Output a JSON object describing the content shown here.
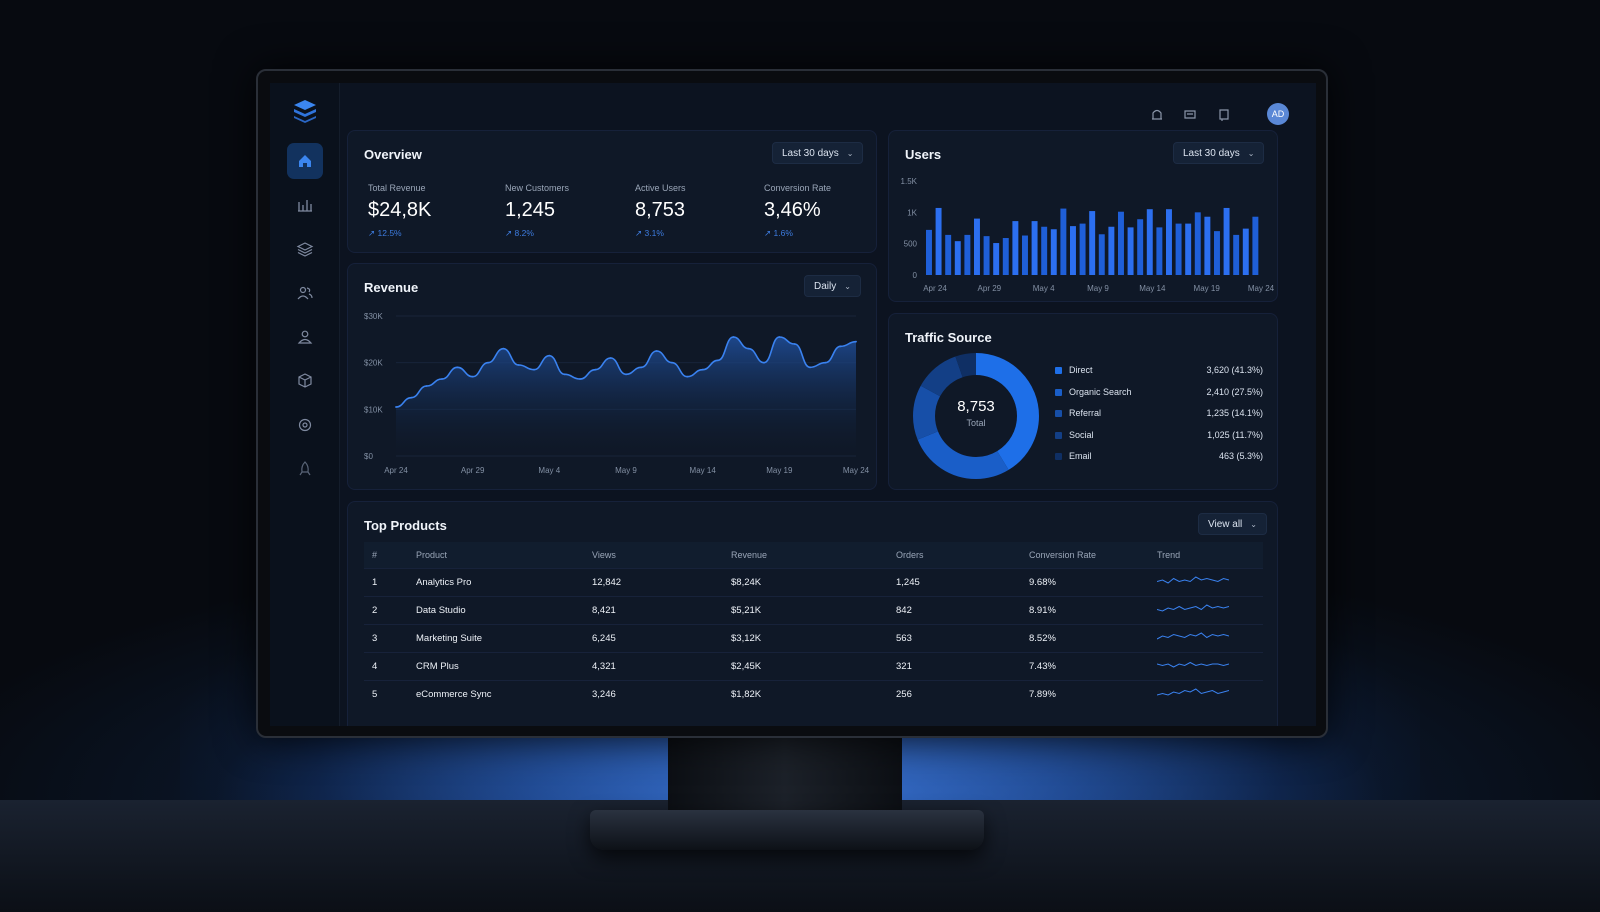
{
  "app": {
    "avatar_initials": "AD"
  },
  "sidebar": {
    "items": [
      {
        "name": "home",
        "active": true
      },
      {
        "name": "analytics"
      },
      {
        "name": "layers"
      },
      {
        "name": "users"
      },
      {
        "name": "contacts"
      },
      {
        "name": "cubes"
      },
      {
        "name": "settings"
      },
      {
        "name": "rocket"
      }
    ]
  },
  "overview": {
    "title": "Overview",
    "range": "Last 30 days",
    "kpis": [
      {
        "label": "Total Revenue",
        "value": "$24,8K",
        "change": "12.5%"
      },
      {
        "label": "New Customers",
        "value": "1,245",
        "change": "8.2%"
      },
      {
        "label": "Active Users",
        "value": "8,753",
        "change": "3.1%"
      },
      {
        "label": "Conversion Rate",
        "value": "3,46%",
        "change": "1.6%"
      }
    ]
  },
  "revenue": {
    "title": "Revenue",
    "range": "Daily"
  },
  "users": {
    "title": "Users",
    "range": "Last 30 days"
  },
  "traffic": {
    "title": "Traffic Source",
    "total": "8,753",
    "total_label": "Total",
    "sources": [
      {
        "name": "Direct",
        "value": "3,620 (41.3%)",
        "pct": 41.3,
        "color": "#1e6fe8"
      },
      {
        "name": "Organic Search",
        "value": "2,410 (27.5%)",
        "pct": 27.5,
        "color": "#1a5ec8"
      },
      {
        "name": "Referral",
        "value": "1,235 (14.1%)",
        "pct": 14.1,
        "color": "#174fa8"
      },
      {
        "name": "Social",
        "value": "1,025 (11.7%)",
        "pct": 11.7,
        "color": "#133f86"
      },
      {
        "name": "Email",
        "value": "463 (5.3%)",
        "pct": 5.3,
        "color": "#0f2f64"
      }
    ]
  },
  "products": {
    "title": "Top Products",
    "view_all": "View all",
    "columns": [
      "#",
      "Product",
      "Views",
      "Revenue",
      "Orders",
      "Conversion Rate",
      "Trend"
    ],
    "rows": [
      {
        "rank": "1",
        "product": "Analytics Pro",
        "views": "12,842",
        "revenue": "$8,24K",
        "orders": "1,245",
        "conversion": "9.68%"
      },
      {
        "rank": "2",
        "product": "Data Studio",
        "views": "8,421",
        "revenue": "$5,21K",
        "orders": "842",
        "conversion": "8.91%"
      },
      {
        "rank": "3",
        "product": "Marketing Suite",
        "views": "6,245",
        "revenue": "$3,12K",
        "orders": "563",
        "conversion": "8.52%"
      },
      {
        "rank": "4",
        "product": "CRM Plus",
        "views": "4,321",
        "revenue": "$2,45K",
        "orders": "321",
        "conversion": "7.43%"
      },
      {
        "rank": "5",
        "product": "eCommerce Sync",
        "views": "3,246",
        "revenue": "$1,82K",
        "orders": "256",
        "conversion": "7.89%"
      }
    ]
  },
  "chart_data": [
    {
      "type": "area",
      "title": "Revenue",
      "x_ticks": [
        "Apr 24",
        "Apr 29",
        "May 4",
        "May 9",
        "May 14",
        "May 19",
        "May 24"
      ],
      "y_ticks": [
        "$0",
        "$10K",
        "$20K",
        "$30K"
      ],
      "ylim": [
        0,
        30000
      ],
      "x": [
        0,
        1,
        2,
        3,
        4,
        5,
        6,
        7,
        8,
        9,
        10,
        11,
        12,
        13,
        14,
        15,
        16,
        17,
        18,
        19,
        20,
        21,
        22,
        23,
        24,
        25,
        26,
        27,
        28,
        29,
        30
      ],
      "values": [
        10500,
        12500,
        15000,
        16500,
        19000,
        17000,
        20000,
        23000,
        19500,
        18500,
        21500,
        17500,
        16500,
        18500,
        21000,
        17500,
        19000,
        22500,
        20000,
        17000,
        18500,
        20500,
        25500,
        23000,
        20000,
        25500,
        24000,
        19000,
        20000,
        23500,
        24500
      ]
    },
    {
      "type": "bar",
      "title": "Users",
      "x_ticks": [
        "Apr 24",
        "Apr 29",
        "May 4",
        "May 9",
        "May 14",
        "May 19",
        "May 24"
      ],
      "y_ticks": [
        "0",
        "500",
        "1K",
        "1.5K"
      ],
      "ylim": [
        0,
        1500
      ],
      "values": [
        720,
        1070,
        640,
        540,
        640,
        900,
        620,
        510,
        590,
        860,
        630,
        860,
        770,
        730,
        1060,
        780,
        820,
        1020,
        650,
        770,
        1010,
        760,
        890,
        1050,
        760,
        1050,
        820,
        820,
        1000,
        930,
        700,
        1070,
        640,
        740,
        930
      ]
    }
  ]
}
